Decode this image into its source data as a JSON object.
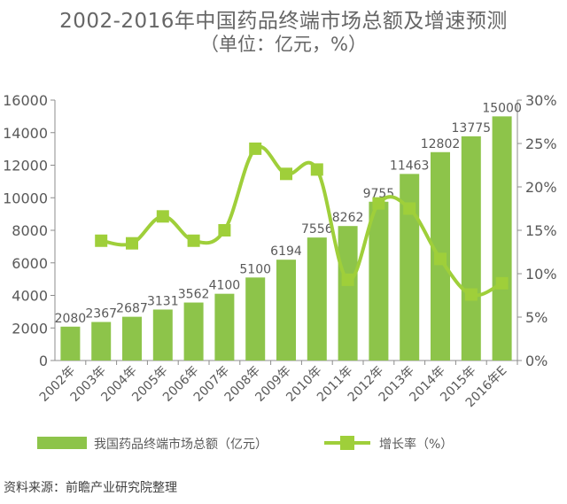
{
  "header": {
    "title": "2002-2016年中国药品终端市场总额及增速预测",
    "subtitle": "（单位：亿元，%）"
  },
  "source": "资料来源：前瞻产业研究院整理",
  "colors": {
    "bar": "#8dc44a",
    "line": "#9fcf3a",
    "axis": "#8c8c8c",
    "text": "#595959"
  },
  "chart_data": {
    "type": "bar",
    "categories": [
      "2002年",
      "2003年",
      "2004年",
      "2005年",
      "2006年",
      "2007年",
      "2008年",
      "2009年",
      "2010年",
      "2011年",
      "2012年",
      "2013年",
      "2014年",
      "2015年",
      "2016年E"
    ],
    "series": [
      {
        "name": "我国药品终端市场总额（亿元）",
        "type": "bar",
        "axis": "left",
        "values": [
          2080,
          2367,
          2687,
          3131,
          3562,
          4100,
          5100,
          6194,
          7556,
          8262,
          9755,
          11463,
          12802,
          13775,
          15000
        ],
        "labels": [
          "2080",
          "2367",
          "2687",
          "3131",
          "3562",
          "4100",
          "5100",
          "6194",
          "7556",
          "8262",
          "9755",
          "11463",
          "12802",
          "13775",
          "15000"
        ]
      },
      {
        "name": "增长率（%）",
        "type": "line",
        "axis": "right",
        "values": [
          null,
          13.8,
          13.5,
          16.6,
          13.8,
          15.0,
          24.4,
          21.5,
          22.0,
          9.3,
          18.1,
          17.5,
          11.7,
          7.6,
          8.9
        ]
      }
    ],
    "y_left": {
      "ylim": [
        0,
        16000
      ],
      "ticks": [
        "0",
        "2000",
        "4000",
        "6000",
        "8000",
        "10000",
        "12000",
        "14000",
        "16000"
      ]
    },
    "y_right": {
      "ylim": [
        0,
        30
      ],
      "ticks": [
        "0%",
        "5%",
        "10%",
        "15%",
        "20%",
        "25%",
        "30%"
      ]
    },
    "grid": false,
    "legend_position": "bottom"
  }
}
